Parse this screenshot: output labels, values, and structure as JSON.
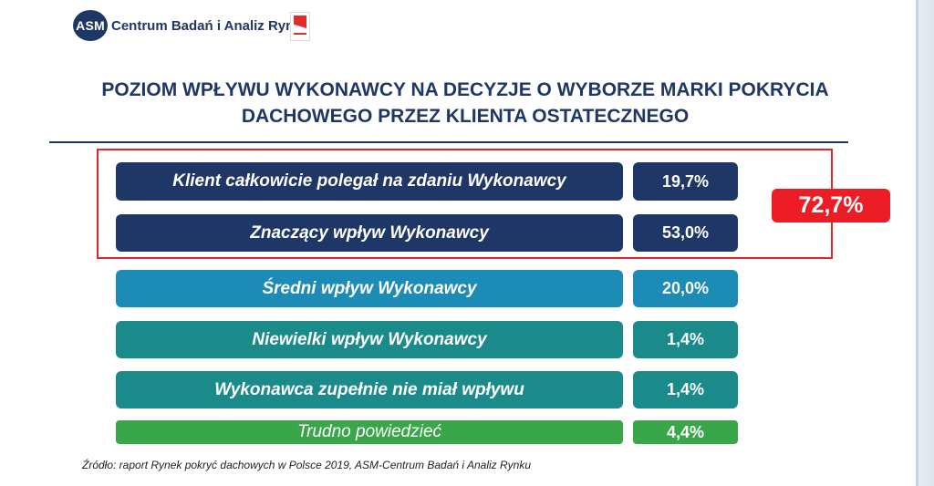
{
  "header": {
    "logo_badge": "ASM",
    "logo_text": "Centrum Badań i Analiz Rynku"
  },
  "title_lines": [
    "POZIOM WPŁYWU WYKONAWCY NA DECYZJE O WYBORZE MARKI POKRYCIA",
    "DACHOWEGO PRZEZ KLIENTA OSTATECZNEGO"
  ],
  "chart_data": {
    "type": "table",
    "title": "POZIOM WPŁYWU WYKONAWCY NA DECYZJE O WYBORZE MARKI POKRYCIA DACHOWEGO PRZEZ KLIENTA OSTATECZNEGO",
    "categories": [
      "Klient całkowicie polegał na zdaniu Wykonawcy",
      "Znaczący wpływ Wykonawcy",
      "Średni wpływ Wykonawcy",
      "Niewielki wpływ Wykonawcy",
      "Wykonawca zupełnie nie miał wpływu",
      "Trudno powiedzieć"
    ],
    "values": [
      19.7,
      53.0,
      20.0,
      1.4,
      1.4,
      4.4
    ],
    "value_labels": [
      "19,7%",
      "53,0%",
      "20,0%",
      "1,4%",
      "1,4%",
      "4,4%"
    ],
    "colors": [
      "#1f3766",
      "#1f3766",
      "#1c8bb6",
      "#1a8a8a",
      "#1a8a8a",
      "#3aa64a"
    ],
    "highlight": {
      "label": "72,7%",
      "value": 72.7,
      "color": "#ec1d24",
      "covers": [
        0,
        1
      ]
    }
  },
  "source": "Źródło: raport Rynek pokryć dachowych w Polsce 2019,  ASM-Centrum Badań i Analiz Rynku"
}
